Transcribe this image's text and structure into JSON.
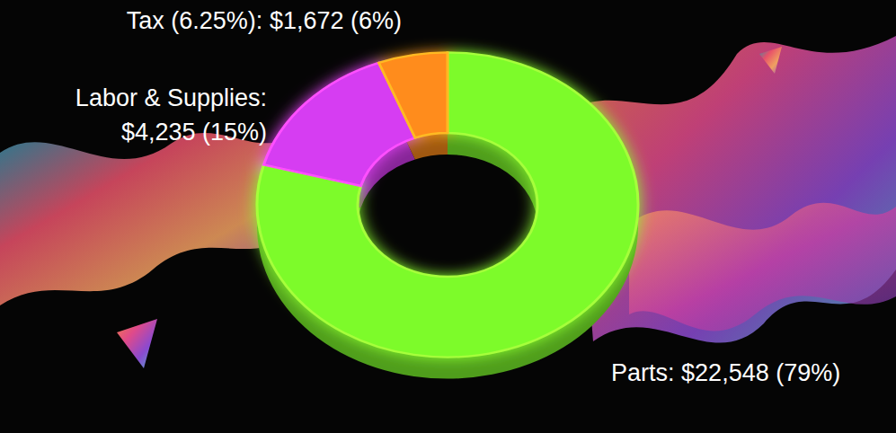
{
  "chart_data": {
    "type": "donut",
    "categories": [
      "Parts:",
      "Labor & Supplies:",
      "Tax (6.25%):"
    ],
    "values": [
      22548,
      4235,
      1672
    ],
    "value_labels": [
      "$22,548 (79%)",
      "$4,235 (15%)",
      "$1,672 (6%)"
    ],
    "colors": [
      "#7dfb2c",
      "#d63cf2",
      "#ff8c1a"
    ],
    "data_labels": true
  }
}
